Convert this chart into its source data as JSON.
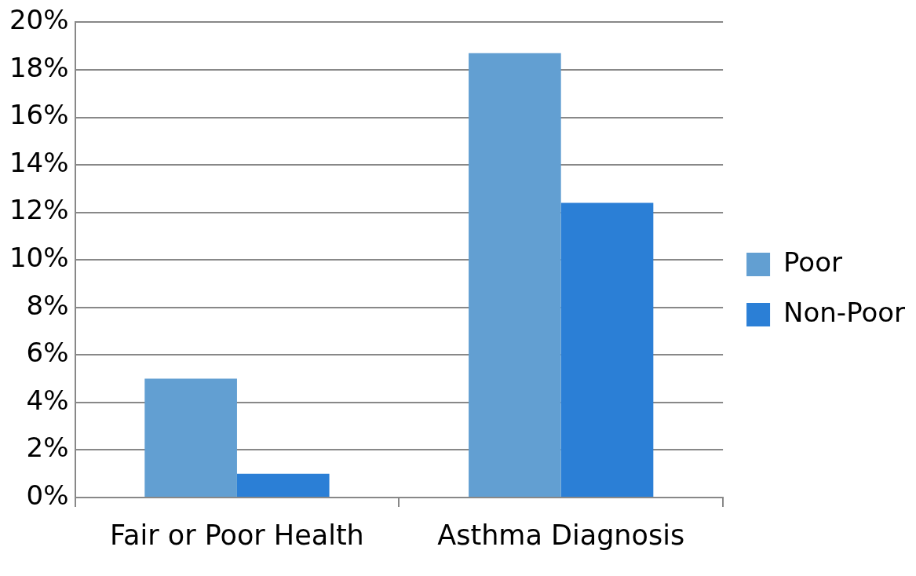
{
  "chart_data": {
    "type": "bar",
    "categories": [
      "Fair or Poor Health",
      "Asthma Diagnosis"
    ],
    "series": [
      {
        "name": "Poor",
        "color": "#629fd2",
        "values": [
          5,
          18.7
        ]
      },
      {
        "name": "Non-Poor",
        "color": "#2b7fd6",
        "values": [
          1,
          12.4
        ]
      }
    ],
    "ylim": [
      0,
      20
    ],
    "yticks": [
      {
        "value": 0,
        "label": "0%"
      },
      {
        "value": 2,
        "label": "2%"
      },
      {
        "value": 4,
        "label": "4%"
      },
      {
        "value": 6,
        "label": "6%"
      },
      {
        "value": 8,
        "label": "8%"
      },
      {
        "value": 10,
        "label": "10%"
      },
      {
        "value": 12,
        "label": "12%"
      },
      {
        "value": 14,
        "label": "14%"
      },
      {
        "value": 16,
        "label": "16%"
      },
      {
        "value": 18,
        "label": "18%"
      },
      {
        "value": 20,
        "label": "20%"
      }
    ],
    "grid": "y",
    "legend": "right"
  }
}
